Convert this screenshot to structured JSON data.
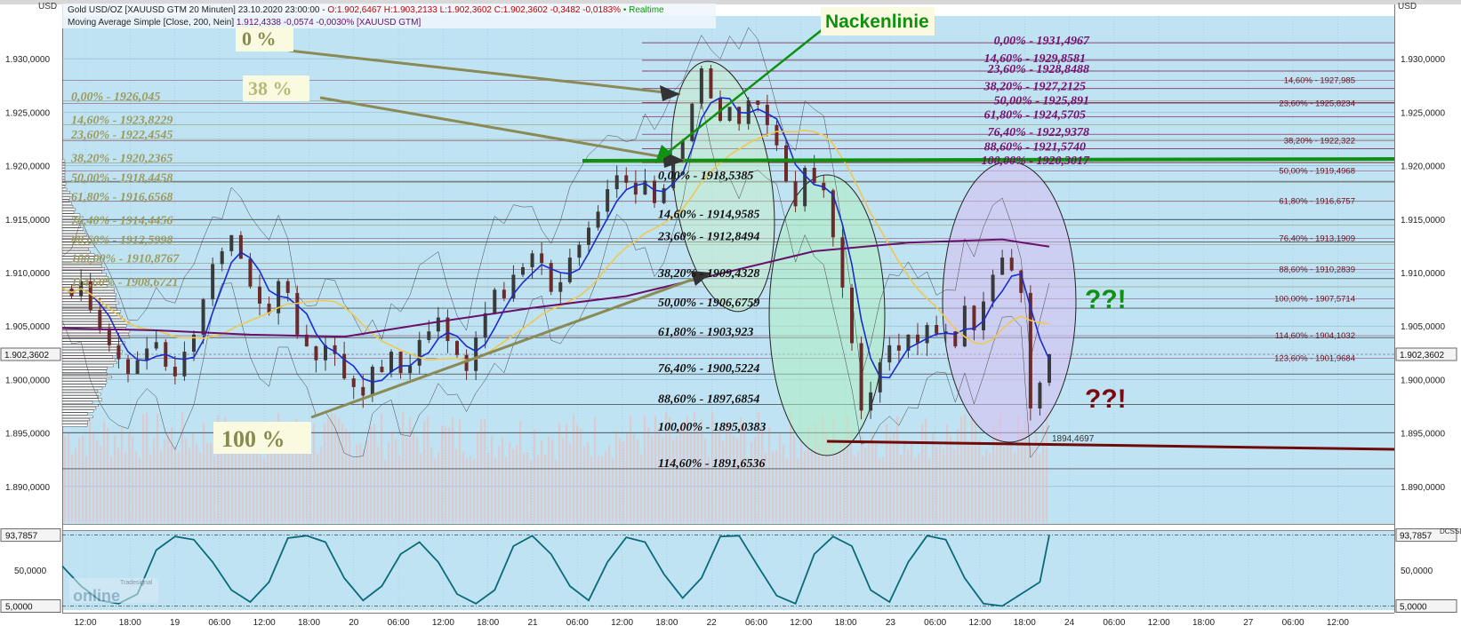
{
  "header": {
    "line1_prefix": "Gold USD/OZ [XAUUSD GTM 20 Minuten] 23.10.2020 23:00:00 - ",
    "line1_ohlc": "O:1.902,6467 H:1.903,2133 L:1.902,3602 C:1.902,3602 -0,3482 -0,0183%",
    "line1_realtime": "• Realtime",
    "line2_prefix": "Moving Average Simple [Close, 200, Nein] ",
    "line2_value": "1.912,4338 -0,0574 -0,0030% [XAUUSD GTM]",
    "left_unit": "USD",
    "right_unit": "USD",
    "osc_unit_right": "DCSSD",
    "watermark_top": "Tradesignal",
    "watermark_main": "online"
  },
  "colors": {
    "background": "#bfe3f3",
    "price_up": "#3a3a3a",
    "price_down": "#6b2b2b",
    "ma_blue": "#1a2dcc",
    "ma_yellow": "#f0c850",
    "ma_purple": "#6a0f6a",
    "neckline": "#109010",
    "support": "#6e0a0a",
    "olive_text": "#9c9a5c",
    "purple_text": "#76106e",
    "dark_red_text": "#6b1020",
    "oscillator": "#0a6a78"
  },
  "chart_data": [
    {
      "type": "line",
      "title": "Gold USD/OZ [XAUUSD GTM 20 Minuten]",
      "ylim": [
        1886.5,
        1934.0
      ],
      "y_ticks": [
        "1.930,0000",
        "1.925,0000",
        "1.920,0000",
        "1.915,0000",
        "1.910,0000",
        "1.905,0000",
        "1.900,0000",
        "1.895,0000",
        "1.890,0000"
      ],
      "y_tick_values": [
        1930,
        1925,
        1920,
        1915,
        1910,
        1905,
        1900,
        1895,
        1890
      ],
      "x_ticks": [
        "12:00",
        "18:00",
        "19",
        "06:00",
        "12:00",
        "18:00",
        "20",
        "06:00",
        "12:00",
        "18:00",
        "21",
        "06:00",
        "12:00",
        "18:00",
        "22",
        "06:00",
        "12:00",
        "18:00",
        "23",
        "06:00",
        "12:00",
        "18:00",
        "24",
        "06:00",
        "12:00",
        "18:00",
        "27",
        "06:00",
        "12:00"
      ],
      "last_price_label": "1.902,3602",
      "last_price": 1902.3602,
      "series": [
        {
          "name": "Gold USD/OZ",
          "x": [
            0,
            2,
            4,
            6,
            8,
            10,
            12,
            14,
            16,
            18,
            20,
            22,
            24,
            26,
            28,
            30,
            32,
            34,
            36,
            38,
            40,
            42,
            44,
            46,
            48,
            50,
            52,
            54,
            56,
            58,
            60,
            62,
            64,
            66,
            68,
            70,
            72,
            74,
            76,
            78,
            80,
            82,
            84,
            86,
            88,
            90,
            92,
            94,
            96,
            98,
            100,
            102,
            104,
            106,
            108,
            110,
            112,
            114,
            116,
            118,
            120,
            122,
            124,
            126,
            128,
            130,
            132,
            134,
            136,
            138,
            140,
            142,
            144,
            146,
            148,
            150,
            152,
            154,
            156,
            158,
            160,
            162,
            164,
            166,
            168,
            170,
            172,
            174,
            176,
            178,
            180,
            182,
            184,
            186,
            188,
            190,
            192,
            194,
            196,
            198,
            200,
            202,
            204,
            206,
            208,
            210
          ],
          "values": [
            1908.5,
            1907.8,
            1909.2,
            1906.5,
            1904.8,
            1903.2,
            1901.9,
            1900.5,
            1901.8,
            1902.9,
            1903.5,
            1901.2,
            1900.3,
            1902.6,
            1904.2,
            1907.5,
            1910.8,
            1912.0,
            1913.5,
            1911.3,
            1908.7,
            1907.1,
            1906.2,
            1909.2,
            1908.1,
            1904.2,
            1903.1,
            1901.8,
            1903.2,
            1902.4,
            1900.1,
            1899.3,
            1898.5,
            1901.2,
            1900.7,
            1902.6,
            1900.6,
            1901.3,
            1903.7,
            1904.5,
            1905.8,
            1903.6,
            1902.3,
            1900.8,
            1903.9,
            1906.2,
            1908.4,
            1907.6,
            1909.8,
            1910.5,
            1911.8,
            1910.9,
            1908.2,
            1909.1,
            1911.4,
            1912.6,
            1914.2,
            1915.7,
            1917.8,
            1919.1,
            1918.4,
            1917.3,
            1918.6,
            1916.5,
            1917.9,
            1920.4,
            1922.3,
            1925.8,
            1929.1,
            1926.3,
            1924.2,
            1925.5,
            1923.9,
            1926.1,
            1925.7,
            1923.8,
            1921.9,
            1918.5,
            1916.2,
            1919.8,
            1918.4,
            1917.7,
            1913.3,
            1908.6,
            1903.4,
            1897.1,
            1898.8,
            1901.6,
            1903.2,
            1902.7,
            1904.2,
            1903.4,
            1905.1,
            1904.3,
            1904.5,
            1903.1,
            1906.9,
            1904.6,
            1907.3,
            1909.8,
            1911.4,
            1910.2,
            1908.1,
            1897.3,
            1899.7,
            1902.36
          ]
        },
        {
          "name": "Moving Average Simple [Close, 200, Nein]",
          "x": [
            0,
            20,
            40,
            60,
            80,
            100,
            120,
            140,
            160,
            180,
            200,
            210
          ],
          "values": [
            1904.8,
            1904.6,
            1904.2,
            1904.0,
            1905.4,
            1906.7,
            1907.8,
            1909.9,
            1912.0,
            1912.8,
            1913.1,
            1912.43
          ]
        }
      ]
    },
    {
      "type": "line",
      "ylim": [
        0,
        100
      ],
      "y_ticks": [
        "50,0000"
      ],
      "y_tick_values": [
        50
      ],
      "boundary_labels": [
        "93,7857",
        "5,0000"
      ],
      "boundary_values": [
        93.7857,
        5.0
      ],
      "series": [
        {
          "x": [
            0,
            4,
            8,
            12,
            16,
            20,
            24,
            28,
            32,
            36,
            40,
            44,
            48,
            52,
            56,
            60,
            64,
            68,
            72,
            76,
            80,
            84,
            88,
            92,
            96,
            100,
            104,
            108,
            112,
            116,
            120,
            124,
            128,
            132,
            136,
            140,
            144,
            148,
            152,
            156,
            160,
            164,
            168,
            172,
            176,
            180,
            184,
            188,
            192,
            196,
            200,
            204,
            208,
            210
          ],
          "values": [
            55,
            30,
            12,
            8,
            20,
            75,
            92,
            88,
            60,
            25,
            10,
            35,
            90,
            93,
            85,
            40,
            12,
            30,
            70,
            85,
            60,
            20,
            8,
            25,
            80,
            93,
            70,
            30,
            12,
            60,
            91,
            85,
            45,
            15,
            40,
            92,
            93,
            55,
            18,
            8,
            70,
            92,
            80,
            25,
            10,
            60,
            93,
            88,
            40,
            8,
            5,
            20,
            35,
            93.79
          ]
        }
      ]
    }
  ],
  "annotations": {
    "pct_0": "0  %",
    "pct_38": "38  %",
    "pct_100": "100  %",
    "neckline": "Nackenlinie",
    "q_green": "??!",
    "q_red": "??!",
    "low_label": "1894,4697",
    "olive_fib": [
      "0,00% - 1926,045",
      "14,60% - 1923,8229",
      "23,60% - 1922,4545",
      "38,20% - 1920,2365",
      "50,00% - 1918,4458",
      "61,80% - 1916,6568",
      "76,40% - 1914,4456",
      "88,60% - 1912,5998",
      "100,00% - 1910,8767",
      "114,60% - 1908,6721"
    ],
    "purple_fib": [
      "0,00% - 1931,4967",
      "14,60% - 1929,8581",
      "23,60% - 1928,8488",
      "38,20% - 1927,2125",
      "50,00% - 1925,891",
      "61,80% - 1924,5705",
      "76,40% - 1922,9378",
      "88,60% - 1921,5740",
      "100,00% - 1920,3017"
    ],
    "black_fib": [
      "0,00% - 1918,5385",
      "14,60% - 1914,9585",
      "23,60% - 1912,8494",
      "38,20% - 1909,4328",
      "50,00% - 1906,6759",
      "61,80% - 1903,923",
      "76,40% - 1900,5224",
      "88,60% - 1897,6854",
      "100,00% - 1895,0383",
      "114,60% - 1891,6536"
    ],
    "right_fib": [
      "14,60% - 1927,985",
      "23,60% - 1925,8234",
      "38,20% - 1922,322",
      "50,00% - 1919,4968",
      "61,80% - 1916,6757",
      "76,40% - 1913,1909",
      "88,60% - 1910,2839",
      "100,00% - 1907,5714",
      "114,60% - 1904,1032",
      "123,60% - 1901,9684"
    ]
  }
}
